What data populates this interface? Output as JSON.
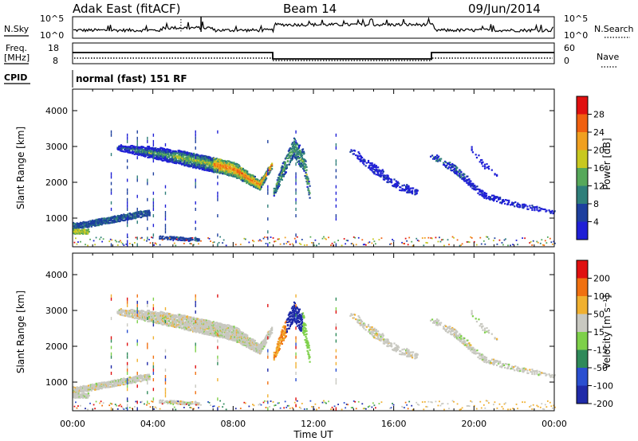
{
  "header": {
    "radar": "Adak East (fitACF)",
    "beam": "Beam 14",
    "date": "09/Jun/2014"
  },
  "noise_panel": {
    "left_label": "N.Sky",
    "right_label": "N.Search",
    "left_ticks": [
      "10^5",
      "10^0"
    ],
    "right_ticks": [
      "10^5",
      "10^0"
    ]
  },
  "freq_panel": {
    "left_label_1": "Freq.",
    "left_label_2": "[MHz]",
    "left_ticks": [
      "18",
      "8"
    ],
    "right_label": "Nave",
    "right_ticks": [
      "60",
      "0"
    ]
  },
  "cpid": {
    "label": "CPID",
    "text": "normal (fast) 151 RF"
  },
  "chart_data": [
    {
      "type": "heatmap",
      "name": "Power",
      "ylabel": "Slant Range [km]",
      "ylim": [
        200,
        4600
      ],
      "yticks": [
        "1000",
        "2000",
        "3000",
        "4000"
      ],
      "colorbar_label": "Power [dB]",
      "colorbar_ticks": [
        "4",
        "8",
        "12",
        "16",
        "20",
        "24",
        "28"
      ],
      "colorbar_range": [
        0,
        32
      ],
      "colors": [
        "#1f1fd6",
        "#1d3f9e",
        "#2f7f7a",
        "#56a85a",
        "#c8c820",
        "#f0a020",
        "#f06010",
        "#e01010"
      ]
    },
    {
      "type": "heatmap",
      "name": "Velocity",
      "ylabel": "Slant Range [km]",
      "ylim": [
        200,
        4600
      ],
      "yticks": [
        "1000",
        "2000",
        "3000",
        "4000"
      ],
      "colorbar_label": "Velocity [m s⁻¹]",
      "colorbar_ticks": [
        "200",
        "100",
        "50",
        "15",
        "-15",
        "-50",
        "-100",
        "-200"
      ],
      "colors": [
        "#1f2aa8",
        "#2a4fd0",
        "#2f8a5a",
        "#7ed04a",
        "#c8c8c0",
        "#f0b030",
        "#f07010",
        "#e01010"
      ]
    }
  ],
  "x_axis": {
    "ticks": [
      "00:00",
      "04:00",
      "08:00",
      "12:00",
      "16:00",
      "20:00",
      "00:00"
    ],
    "label": "Time UT",
    "range_hours": [
      0,
      24
    ]
  }
}
